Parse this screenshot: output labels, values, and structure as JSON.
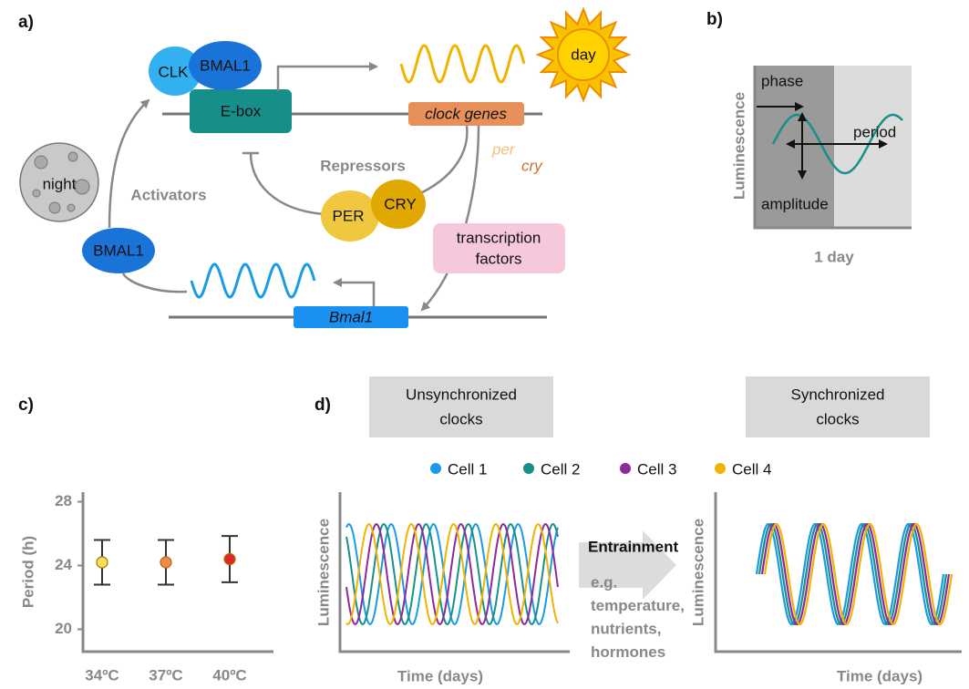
{
  "panel_a": {
    "label": "a)",
    "day": "day",
    "night": "night",
    "clk": "CLK",
    "bmal1_top": "BMAL1",
    "ebox": "E-box",
    "clock_genes": "clock genes",
    "per_gene": "per",
    "cry_gene": "cry",
    "repressors": "Repressors",
    "per_protein": "PER",
    "cry_protein": "CRY",
    "activators": "Activators",
    "bmal1_left": "BMAL1",
    "transcription_factors": [
      "transcription",
      "factors"
    ],
    "bmal1_gene": "Bmal1"
  },
  "panel_b": {
    "label": "b)",
    "y_label": "Luminescence",
    "x_label": "1 day",
    "phase": "phase",
    "period": "period",
    "amplitude": "amplitude"
  },
  "panel_c": {
    "label": "c)",
    "chart_data": {
      "type": "errorbar",
      "y_label": "Period (h)",
      "categories": [
        "34ºC",
        "37ºC",
        "40ºC"
      ],
      "values": [
        24.2,
        24.2,
        24.4
      ],
      "errors": [
        1.4,
        1.4,
        1.45
      ],
      "colors": [
        "#f2e35a",
        "#f08a50",
        "#e3242b"
      ],
      "ylim": [
        18.6,
        28.6
      ],
      "yticks": [
        20,
        24,
        28
      ]
    }
  },
  "panel_d": {
    "label": "d)",
    "unsynchronized": [
      "Unsynchronized",
      "clocks"
    ],
    "synchronized": [
      "Synchronized",
      "clocks"
    ],
    "legend": [
      {
        "name": "Cell 1",
        "color": "#1a9be6"
      },
      {
        "name": "Cell 2",
        "color": "#16918a"
      },
      {
        "name": "Cell 3",
        "color": "#8e2a9a"
      },
      {
        "name": "Cell 4",
        "color": "#f0b400"
      }
    ],
    "y_label": "Luminescence",
    "x_label_left": "Time (days)",
    "x_label_right": "Time (days)",
    "entrainment": "Entrainment",
    "examples": [
      "e.g.",
      "temperature,",
      "nutrients,",
      "hormones"
    ]
  }
}
